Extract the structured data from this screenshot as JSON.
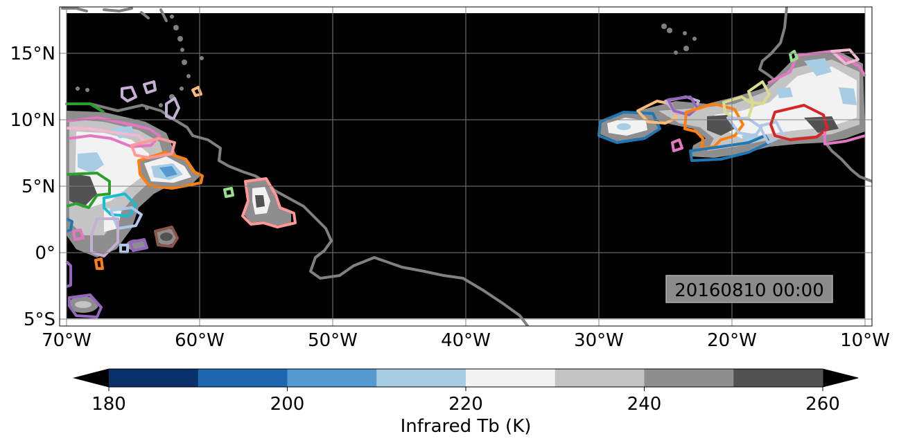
{
  "map": {
    "timestamp": "20160810 00:00",
    "background_color": "#000000",
    "coastline_color": "#808080",
    "grid_color": "#808080",
    "lon_range": [
      -70,
      -10
    ],
    "lat_range": [
      -5.5,
      18.5
    ],
    "lon_ticks": [
      {
        "value": -70,
        "label": "70°W"
      },
      {
        "value": -60,
        "label": "60°W"
      },
      {
        "value": -50,
        "label": "50°W"
      },
      {
        "value": -40,
        "label": "40°W"
      },
      {
        "value": -30,
        "label": "30°W"
      },
      {
        "value": -20,
        "label": "20°W"
      },
      {
        "value": -10,
        "label": "10°W"
      }
    ],
    "lat_ticks": [
      {
        "value": 15,
        "label": "15°N"
      },
      {
        "value": 10,
        "label": "10°N"
      },
      {
        "value": 5,
        "label": "5°N"
      },
      {
        "value": 0,
        "label": "0°"
      },
      {
        "value": -5,
        "label": "5°S"
      }
    ]
  },
  "colorbar": {
    "label": "Infrared Tb (K)",
    "range": [
      180,
      260
    ],
    "ticks": [
      {
        "value": 180,
        "label": "180"
      },
      {
        "value": 200,
        "label": "200"
      },
      {
        "value": 220,
        "label": "220"
      },
      {
        "value": 240,
        "label": "240"
      },
      {
        "value": 260,
        "label": "260"
      }
    ],
    "bins": [
      {
        "from": 180,
        "to": 190,
        "color": "#08306b"
      },
      {
        "from": 190,
        "to": 200,
        "color": "#1f66b0"
      },
      {
        "from": 200,
        "to": 210,
        "color": "#5499cf"
      },
      {
        "from": 210,
        "to": 220,
        "color": "#a6cde3"
      },
      {
        "from": 220,
        "to": 230,
        "color": "#f2f2f2"
      },
      {
        "from": 230,
        "to": 240,
        "color": "#c4c4c4"
      },
      {
        "from": 240,
        "to": 250,
        "color": "#8e8e8e"
      },
      {
        "from": 250,
        "to": 260,
        "color": "#525252"
      }
    ],
    "under_color": "#000000",
    "over_color": "#000000"
  }
}
